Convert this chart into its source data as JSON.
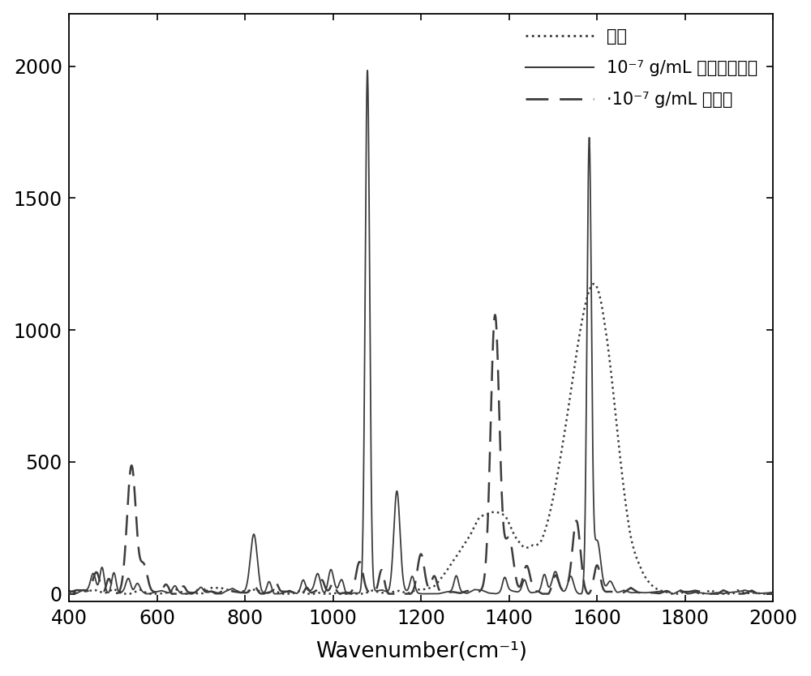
{
  "xlim": [
    400,
    2000
  ],
  "ylim": [
    -30,
    2200
  ],
  "yticks": [
    0,
    500,
    1000,
    1500,
    2000
  ],
  "xticks": [
    400,
    600,
    800,
    1000,
    1200,
    1400,
    1600,
    1800,
    2000
  ],
  "xlabel": "Wavenumber(cm⁻¹)",
  "line_color": "#3c3c3c",
  "background_color": "#ffffff",
  "legend_labels": [
    "基底",
    "10⁻⁷ g/mL 对氨基苯硫酟",
    "·10⁻⁷ g/mL 福美双"
  ],
  "figsize": [
    10.0,
    8.34
  ],
  "dpi": 100
}
